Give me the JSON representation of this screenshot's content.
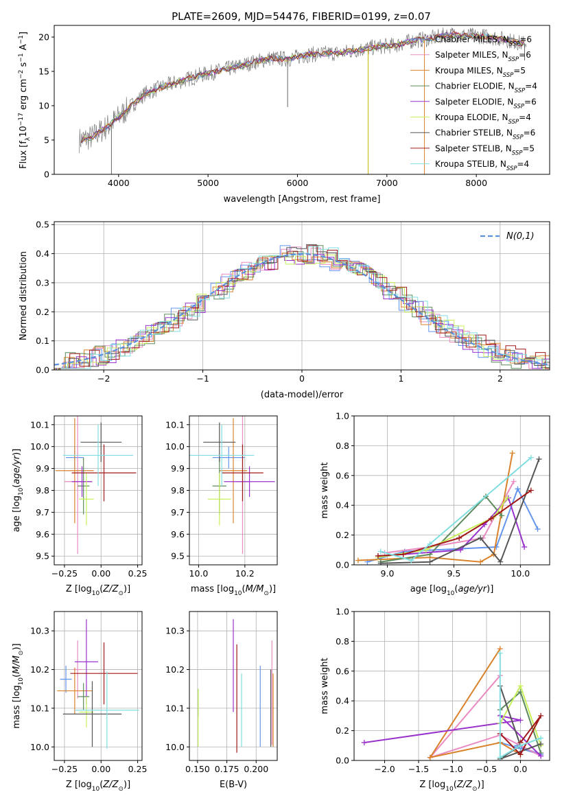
{
  "figure": {
    "title": "PLATE=2609, MJD=54476, FIBERID=0199, z=0.07"
  },
  "series_styles": [
    {
      "name": "Chabrier MILES",
      "n_ssp": 6,
      "color": "#6495ED"
    },
    {
      "name": "Salpeter MILES",
      "n_ssp": 6,
      "color": "#E98AC1"
    },
    {
      "name": "Kroupa MILES",
      "n_ssp": 5,
      "color": "#D9822B"
    },
    {
      "name": "Chabrier ELODIE",
      "n_ssp": 4,
      "color": "#5C8A5C"
    },
    {
      "name": "Salpeter ELODIE",
      "n_ssp": 6,
      "color": "#9932CC"
    },
    {
      "name": "Kroupa ELODIE",
      "n_ssp": 4,
      "color": "#C8F05A"
    },
    {
      "name": "Chabrier STELIB",
      "n_ssp": 6,
      "color": "#555555"
    },
    {
      "name": "Salpeter STELIB",
      "n_ssp": 5,
      "color": "#A01818"
    },
    {
      "name": "Kroupa STELIB",
      "n_ssp": 4,
      "color": "#80DEE0"
    }
  ],
  "chart_data": [
    {
      "id": "spectrum",
      "type": "line",
      "title": "PLATE=2609, MJD=54476, FIBERID=0199, z=0.07",
      "xlabel": "wavelength [Angstrom, rest frame]",
      "ylabel": "Flux [f_λ 10^-17 erg cm^-2 s^-1 A^-1]",
      "xlim": [
        3280,
        8820
      ],
      "ylim": [
        0,
        21.7
      ],
      "xticks": [
        4000,
        5000,
        6000,
        7000,
        8000
      ],
      "yticks": [
        0,
        5,
        10,
        15,
        20
      ],
      "grid": false,
      "legend_position": "right",
      "continuum_x": [
        3560,
        3700,
        3900,
        4100,
        4300,
        4500,
        4700,
        4900,
        5100,
        5300,
        5500,
        5700,
        5900,
        6100,
        6300,
        6500,
        6700,
        6900,
        7100,
        7300,
        7500,
        7700,
        7900,
        8100,
        8300,
        8500
      ],
      "continuum_y": [
        5.0,
        5.4,
        7.2,
        9.5,
        11.8,
        12.8,
        13.6,
        14.4,
        15.0,
        15.6,
        16.3,
        16.9,
        16.8,
        17.4,
        17.6,
        17.7,
        18.2,
        18.6,
        18.8,
        19.5,
        19.8,
        20.4,
        20.2,
        20.1,
        19.7,
        19.1
      ],
      "dips": [
        {
          "x": 3920,
          "y": 0
        },
        {
          "x": 5890,
          "y": 9.8
        },
        {
          "x": 6790,
          "y": 0
        },
        {
          "x": 7420,
          "y": 0
        },
        {
          "x": 8540,
          "y": 16.6
        }
      ]
    },
    {
      "id": "residuals",
      "type": "histogram",
      "xlabel": "(data-model)/error",
      "ylabel": "Normed distribution",
      "xlim": [
        -2.5,
        2.5
      ],
      "ylim": [
        0,
        0.51
      ],
      "xticks": [
        -2,
        -1,
        0,
        1,
        2
      ],
      "yticks": [
        0.0,
        0.1,
        0.2,
        0.3,
        0.4,
        0.5
      ],
      "grid": true,
      "bin_width": 0.1,
      "legend_position": "top-right",
      "reference": {
        "name": "N(0,1)",
        "mean": 0,
        "sigma": 1,
        "color": "#5B8FD9"
      }
    },
    {
      "id": "age_vs_Z",
      "type": "errorbar",
      "xlabel": "Z [log10(Z/Z☉)]",
      "ylabel": "age [log10(age/yr)]",
      "xlim": [
        -0.32,
        0.28
      ],
      "ylim": [
        9.46,
        10.14
      ],
      "xticks": [
        -0.25,
        0.0,
        0.25
      ],
      "yticks": [
        9.5,
        9.6,
        9.7,
        9.8,
        9.9,
        10.0,
        10.1
      ],
      "grid": true,
      "points": [
        {
          "x": -0.18,
          "xerr": 0.06,
          "y": 9.95,
          "yerr": 0.05
        },
        {
          "x": -0.16,
          "xerr": 0.09,
          "y": 9.84,
          "yerr": 0.33
        },
        {
          "x": -0.18,
          "xerr": 0.13,
          "y": 9.89,
          "yerr": 0.24
        },
        {
          "x": -0.12,
          "xerr": 0.04,
          "y": 9.82,
          "yerr": 0.13
        },
        {
          "x": -0.13,
          "xerr": 0.07,
          "y": 9.84,
          "yerr": 0.07
        },
        {
          "x": -0.1,
          "xerr": 0.05,
          "y": 9.76,
          "yerr": 0.12
        },
        {
          "x": 0.0,
          "xerr": 0.14,
          "y": 10.02,
          "yerr": 0.09
        },
        {
          "x": 0.02,
          "xerr": 0.22,
          "y": 9.88,
          "yerr": 0.13
        },
        {
          "x": -0.02,
          "xerr": 0.24,
          "y": 9.96,
          "yerr": 0.14
        }
      ]
    },
    {
      "id": "age_vs_mass",
      "type": "errorbar",
      "xlabel": "mass [log10(M/M☉)]",
      "ylabel": "",
      "xlim": [
        9.96,
        10.34
      ],
      "ylim": [
        9.46,
        10.14
      ],
      "xticks": [
        10.0,
        10.2
      ],
      "yticks": [
        9.5,
        9.6,
        9.7,
        9.8,
        9.9,
        10.0,
        10.1
      ],
      "grid": true,
      "points": [
        {
          "x": 10.13,
          "xerr": 0.07,
          "y": 9.95,
          "yerr": 0.05
        },
        {
          "x": 10.19,
          "xerr": 0.03,
          "y": 9.84,
          "yerr": 0.33
        },
        {
          "x": 10.15,
          "xerr": 0.06,
          "y": 9.89,
          "yerr": 0.24
        },
        {
          "x": 10.09,
          "xerr": 0.03,
          "y": 9.82,
          "yerr": 0.13
        },
        {
          "x": 10.22,
          "xerr": 0.11,
          "y": 9.84,
          "yerr": 0.07
        },
        {
          "x": 10.09,
          "xerr": 0.05,
          "y": 9.76,
          "yerr": 0.12
        },
        {
          "x": 10.09,
          "xerr": 0.07,
          "y": 10.02,
          "yerr": 0.09
        },
        {
          "x": 10.19,
          "xerr": 0.09,
          "y": 9.88,
          "yerr": 0.13
        },
        {
          "x": 10.1,
          "xerr": 0.14,
          "y": 9.96,
          "yerr": 0.14
        }
      ]
    },
    {
      "id": "weight_vs_age",
      "type": "line",
      "xlabel": "age [log10(age/yr)]",
      "ylabel": "mass weight",
      "xlim": [
        8.75,
        10.22
      ],
      "ylim": [
        0,
        1
      ],
      "xticks": [
        9.0,
        9.5,
        10.0
      ],
      "yticks": [
        0.0,
        0.2,
        0.4,
        0.6,
        0.8,
        1.0
      ],
      "grid": true,
      "series": [
        {
          "x": [
            8.85,
            9.13,
            9.82,
            9.98,
            10.13
          ],
          "y": [
            0.02,
            0.09,
            0.12,
            0.51,
            0.24
          ]
        },
        {
          "x": [
            8.98,
            9.32,
            9.72,
            9.95
          ],
          "y": [
            0.08,
            0.12,
            0.18,
            0.56
          ]
        },
        {
          "x": [
            8.78,
            9.32,
            9.7,
            9.8,
            9.94
          ],
          "y": [
            0.03,
            0.05,
            0.02,
            0.07,
            0.75
          ]
        },
        {
          "x": [
            8.95,
            9.32,
            9.74,
            9.86
          ],
          "y": [
            0.02,
            0.07,
            0.46,
            0.33
          ]
        },
        {
          "x": [
            8.93,
            9.12,
            9.55,
            9.73,
            9.91,
            10.03
          ],
          "y": [
            0.06,
            0.07,
            0.1,
            0.27,
            0.45,
            0.12
          ]
        },
        {
          "x": [
            8.93,
            9.29,
            9.8,
            9.9
          ],
          "y": [
            0.05,
            0.1,
            0.32,
            0.45
          ]
        },
        {
          "x": [
            8.95,
            9.32,
            9.7,
            9.85,
            10.14
          ],
          "y": [
            0.01,
            0.02,
            0.18,
            0.02,
            0.71
          ]
        },
        {
          "x": [
            8.93,
            9.12,
            9.54,
            9.78,
            10.08
          ],
          "y": [
            0.06,
            0.07,
            0.18,
            0.31,
            0.5
          ]
        },
        {
          "x": [
            8.95,
            9.18,
            9.32,
            10.08
          ],
          "y": [
            0.09,
            0.03,
            0.14,
            0.72
          ]
        }
      ]
    },
    {
      "id": "mass_vs_Z",
      "type": "errorbar",
      "xlabel": "Z [log10(Z/Z☉)]",
      "ylabel": "mass [log10(M/M☉)]",
      "xlim": [
        -0.32,
        0.28
      ],
      "ylim": [
        9.965,
        10.35
      ],
      "xticks": [
        -0.25,
        0.0,
        0.25
      ],
      "yticks": [
        10.0,
        10.1,
        10.2,
        10.3
      ],
      "grid": true,
      "points": [
        {
          "x": -0.24,
          "xerr": 0.04,
          "y": 10.175,
          "yerr": 0.035
        },
        {
          "x": -0.16,
          "xerr": 0.03,
          "y": 10.2,
          "yerr": 0.075
        },
        {
          "x": -0.18,
          "xerr": 0.12,
          "y": 10.145,
          "yerr": 0.06
        },
        {
          "x": -0.12,
          "xerr": 0.04,
          "y": 10.13,
          "yerr": 0.035
        },
        {
          "x": -0.1,
          "xerr": 0.08,
          "y": 10.22,
          "yerr": 0.11
        },
        {
          "x": -0.1,
          "xerr": 0.05,
          "y": 10.09,
          "yerr": 0.04
        },
        {
          "x": -0.06,
          "xerr": 0.2,
          "y": 10.085,
          "yerr": 0.085
        },
        {
          "x": 0.02,
          "xerr": 0.23,
          "y": 10.19,
          "yerr": 0.08
        },
        {
          "x": 0.04,
          "xerr": 0.22,
          "y": 10.095,
          "yerr": 0.1
        }
      ]
    },
    {
      "id": "mass_vs_EBV",
      "type": "errorbar",
      "xlabel": "E(B-V)",
      "ylabel": "",
      "xlim": [
        0.143,
        0.218
      ],
      "ylim": [
        9.965,
        10.35
      ],
      "xticks": [
        0.15,
        0.175,
        0.2
      ],
      "yticks": [
        10.0,
        10.1,
        10.2,
        10.3
      ],
      "grid": true,
      "points": [
        {
          "x": 0.2035,
          "xerr": 0,
          "y": 10.105,
          "yerr": 0.105
        },
        {
          "x": 0.2135,
          "xerr": 0,
          "y": 10.14,
          "yerr": 0.135
        },
        {
          "x": 0.2145,
          "xerr": 0,
          "y": 10.095,
          "yerr": 0.095
        },
        {
          "x": 0.1505,
          "xerr": 0,
          "y": 10.115,
          "yerr": 0.035
        },
        {
          "x": 0.1805,
          "xerr": 0,
          "y": 10.21,
          "yerr": 0.12
        },
        {
          "x": 0.1505,
          "xerr": 0,
          "y": 10.075,
          "yerr": 0.075
        },
        {
          "x": 0.2125,
          "xerr": 0,
          "y": 10.1,
          "yerr": 0.1
        },
        {
          "x": 0.1835,
          "xerr": 0,
          "y": 10.125,
          "yerr": 0.14
        },
        {
          "x": 0.1875,
          "xerr": 0,
          "y": 10.095,
          "yerr": 0.095
        }
      ]
    },
    {
      "id": "weight_vs_Z",
      "type": "line",
      "xlabel": "Z [log10(Z/Z☉)]",
      "ylabel": "mass weight",
      "xlim": [
        -2.45,
        0.43
      ],
      "ylim": [
        0,
        1
      ],
      "xticks": [
        -2.0,
        -1.5,
        -1.0,
        -0.5,
        0.0
      ],
      "yticks": [
        0.0,
        0.2,
        0.4,
        0.6,
        0.8,
        1.0
      ],
      "grid": true,
      "series": [
        {
          "x": [
            -0.3,
            0.0,
            0.3,
            -0.05
          ],
          "y": [
            0.12,
            0.08,
            0.04,
            0.1
          ]
        },
        {
          "x": [
            -0.3,
            -1.33,
            -0.3,
            0.0,
            0.3
          ],
          "y": [
            0.57,
            0.02,
            0.17,
            0.1,
            0.03
          ]
        },
        {
          "x": [
            -0.3,
            -1.33,
            -0.3,
            0.0
          ],
          "y": [
            0.75,
            0.02,
            0.12,
            0.04
          ]
        },
        {
          "x": [
            -0.3,
            0.0,
            0.3
          ],
          "y": [
            0.34,
            0.46,
            0.05
          ]
        },
        {
          "x": [
            -2.3,
            0.0,
            -0.3,
            0.3
          ],
          "y": [
            0.12,
            0.27,
            0.3,
            0.03
          ]
        },
        {
          "x": [
            -0.3,
            0.0,
            0.3
          ],
          "y": [
            0.25,
            0.5,
            0.1
          ]
        },
        {
          "x": [
            -0.3,
            0.0,
            -0.3,
            0.3
          ],
          "y": [
            0.5,
            0.1,
            0.01,
            0.11
          ]
        },
        {
          "x": [
            -0.3,
            0.0,
            0.3,
            0.0
          ],
          "y": [
            0.18,
            0.04,
            0.3,
            0.12
          ]
        },
        {
          "x": [
            -0.3,
            -0.3,
            0.0,
            0.3
          ],
          "y": [
            0.72,
            0.02,
            0.1,
            0.15
          ]
        }
      ]
    }
  ]
}
